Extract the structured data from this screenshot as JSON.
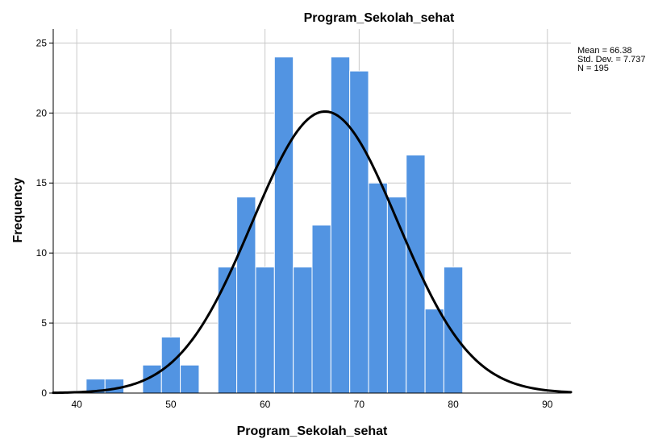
{
  "chart_data": {
    "type": "bar",
    "subtype": "histogram",
    "title": "Program_Sekolah_sehat",
    "xlabel": "Program_Sekolah_sehat",
    "ylabel": "Frequency",
    "xlim": [
      37.5,
      92.5
    ],
    "ylim": [
      0,
      26
    ],
    "x_ticks": [
      "40",
      "50",
      "60",
      "70",
      "80",
      "90"
    ],
    "y_ticks": [
      "0",
      "5",
      "10",
      "15",
      "20",
      "25"
    ],
    "bin_width": 2,
    "bins": [
      {
        "start": 41,
        "end": 43,
        "count": 1
      },
      {
        "start": 43,
        "end": 45,
        "count": 1
      },
      {
        "start": 47,
        "end": 49,
        "count": 2
      },
      {
        "start": 49,
        "end": 51,
        "count": 4
      },
      {
        "start": 51,
        "end": 53,
        "count": 2
      },
      {
        "start": 55,
        "end": 57,
        "count": 9
      },
      {
        "start": 57,
        "end": 59,
        "count": 14
      },
      {
        "start": 59,
        "end": 61,
        "count": 9
      },
      {
        "start": 61,
        "end": 63,
        "count": 24
      },
      {
        "start": 63,
        "end": 65,
        "count": 9
      },
      {
        "start": 65,
        "end": 67,
        "count": 12
      },
      {
        "start": 67,
        "end": 69,
        "count": 24
      },
      {
        "start": 69,
        "end": 71,
        "count": 23
      },
      {
        "start": 71,
        "end": 73,
        "count": 15
      },
      {
        "start": 73,
        "end": 75,
        "count": 14
      },
      {
        "start": 75,
        "end": 77,
        "count": 17
      },
      {
        "start": 77,
        "end": 79,
        "count": 6
      },
      {
        "start": 79,
        "end": 81,
        "count": 9
      }
    ],
    "normal_curve": {
      "mean": 66.38,
      "std_dev": 7.737,
      "n": 195
    },
    "stats_labels": [
      "Mean = 66.38",
      "Std. Dev. = 7.737",
      "N = 195"
    ],
    "grid": true,
    "stats_placement": "top-right",
    "colors": {
      "bar_fill": "#5294E2",
      "bar_stroke": "#ffffff",
      "curve": "#000000",
      "grid": "#c8c8c8",
      "axis": "#000000"
    }
  }
}
